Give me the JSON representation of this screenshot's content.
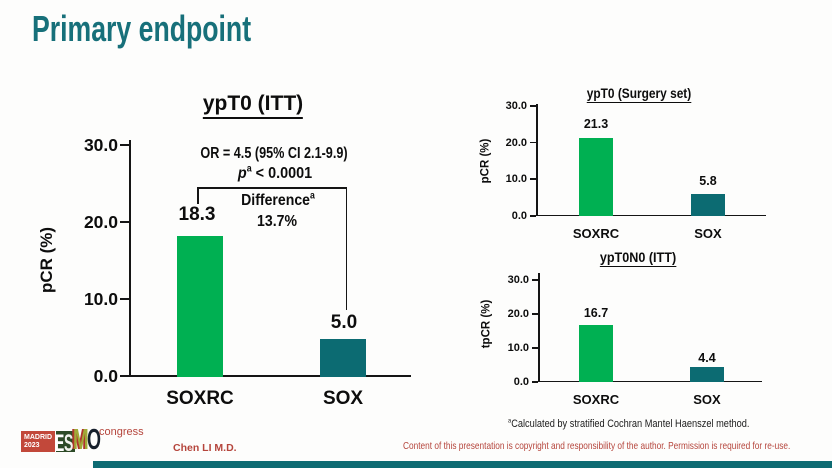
{
  "slide": {
    "title": "Primary endpoint",
    "presenter": "Chen LI M.D.",
    "footnote": {
      "sup": "a",
      "text": "Calculated by stratified Cochran Mantel Haenszel method."
    },
    "copyright": "Content of this presentation is copyright and responsibility of the author. Permission is required for re-use.",
    "colors": {
      "accent_teal": "#17707a",
      "bar_green": "#00b052",
      "bar_teal": "#0c6b72",
      "red_text": "#b5453c",
      "bottom_bar_teal": "#0d6b72"
    }
  },
  "logo": {
    "location": "MADRID",
    "year": "2023",
    "letter_e": "E",
    "letter_s": "S",
    "letter_m": "M",
    "letter_o": "O",
    "congress": "congress"
  },
  "chart_data": [
    {
      "type": "bar",
      "title": "ypT0 (ITT)",
      "ylabel": "pCR (%)",
      "xlabel": "",
      "categories": [
        "SOXRC",
        "SOX"
      ],
      "values": [
        18.3,
        5.0
      ],
      "value_labels": [
        "18.3",
        "5.0"
      ],
      "ylim": [
        0,
        30
      ],
      "yticks": [
        "30.0",
        "20.0",
        "10.0",
        "0.0"
      ],
      "bar_colors": [
        "#00b052",
        "#0c6b72"
      ],
      "grid": false,
      "legend": false,
      "annotations": {
        "or_line": "OR = 4.5 (95% CI 2.1-9.9)",
        "p_italic": "p",
        "p_sup": "a",
        "p_rest": " < 0.0001",
        "difference_label": "Difference",
        "difference_sup": "a",
        "difference_value": "13.7%"
      }
    },
    {
      "type": "bar",
      "title": "ypT0 (Surgery set)",
      "ylabel": "pCR (%)",
      "xlabel": "",
      "categories": [
        "SOXRC",
        "SOX"
      ],
      "values": [
        21.3,
        5.8
      ],
      "value_labels": [
        "21.3",
        "5.8"
      ],
      "ylim": [
        0,
        30
      ],
      "yticks": [
        "30.0",
        "20.0",
        "10.0",
        "0.0"
      ],
      "bar_colors": [
        "#00b052",
        "#0c6b72"
      ],
      "grid": false,
      "legend": false
    },
    {
      "type": "bar",
      "title": "ypT0N0 (ITT)",
      "ylabel": "tpCR (%)",
      "xlabel": "",
      "categories": [
        "SOXRC",
        "SOX"
      ],
      "values": [
        16.7,
        4.4
      ],
      "value_labels": [
        "16.7",
        "4.4"
      ],
      "ylim": [
        0,
        30
      ],
      "yticks": [
        "30.0",
        "20.0",
        "10.0",
        "0.0"
      ],
      "bar_colors": [
        "#00b052",
        "#0c6b72"
      ],
      "grid": false,
      "legend": false
    }
  ]
}
